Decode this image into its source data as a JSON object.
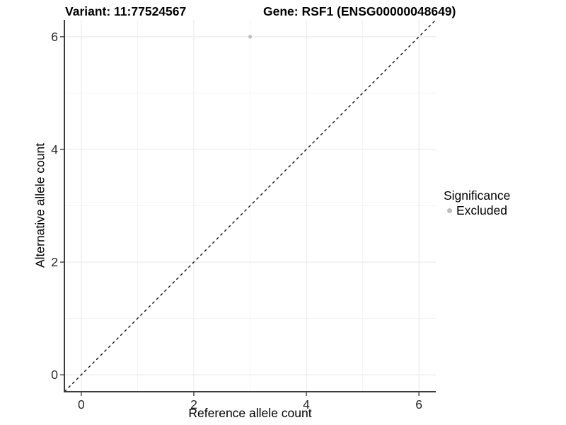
{
  "titles": {
    "variant": "Variant: 11:77524567",
    "gene": "Gene: RSF1 (ENSG00000048649)"
  },
  "colors": {
    "background": "#ffffff",
    "grid_major": "#ebebeb",
    "grid_minor": "#f3f3f3",
    "axis_line": "#3c3c3c",
    "tick_mark": "#333333",
    "tick_label": "#262626",
    "identity_line": "#000000",
    "point": "#bdbdbd",
    "text": "#000000"
  },
  "chart_data": {
    "type": "scatter",
    "title_left": "Variant: 11:77524567",
    "title_right": "Gene: RSF1 (ENSG00000048649)",
    "xlabel": "Reference allele count",
    "ylabel": "Alternative allele count",
    "xlim": [
      -0.3,
      6.3
    ],
    "ylim": [
      -0.3,
      6.3
    ],
    "x_ticks": [
      0,
      2,
      4,
      6
    ],
    "y_ticks": [
      0,
      2,
      4,
      6
    ],
    "x_minor_ticks": [
      1,
      3,
      5
    ],
    "y_minor_ticks": [
      1,
      3,
      5
    ],
    "grid": true,
    "series": [
      {
        "name": "Excluded",
        "color": "#bdbdbd",
        "points": [
          {
            "x": 3,
            "y": 6
          }
        ]
      }
    ],
    "reference_line": {
      "type": "identity",
      "style": "dashed",
      "color": "#000000",
      "from": [
        -0.3,
        -0.3
      ],
      "to": [
        6.3,
        6.3
      ]
    },
    "legend": {
      "title": "Significance",
      "position": "right",
      "items": [
        {
          "label": "Excluded",
          "color": "#bdbdbd"
        }
      ]
    }
  }
}
